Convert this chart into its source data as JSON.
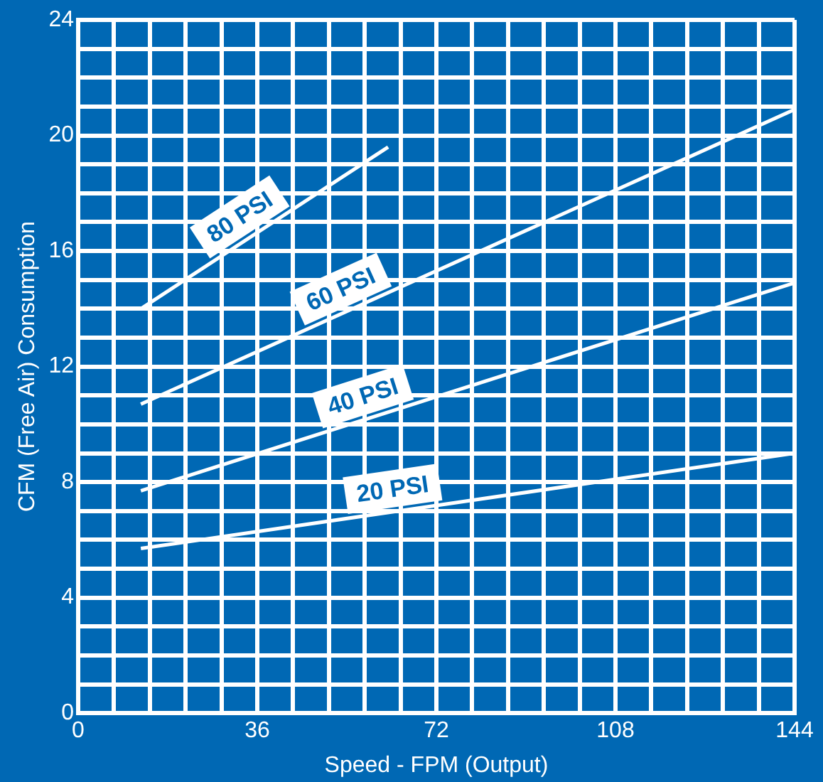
{
  "chart_data": {
    "type": "line",
    "xlabel": "Speed - FPM (Output)",
    "ylabel": "CFM (Free Air) Consumption",
    "xlim": [
      0,
      144
    ],
    "xticks": [
      0,
      {
        "value": 7.2,
        "label": null
      },
      {
        "value": 14.4,
        "label": null
      },
      {
        "value": 21.6,
        "label": null
      },
      {
        "value": 28.8,
        "label": null
      },
      36,
      {
        "value": 43.2,
        "label": null
      },
      {
        "value": 50.4,
        "label": null
      },
      {
        "value": 57.6,
        "label": null
      },
      {
        "value": 64.8,
        "label": null
      },
      72,
      {
        "value": 79.2,
        "label": null
      },
      {
        "value": 86.4,
        "label": null
      },
      {
        "value": 93.6,
        "label": null
      },
      {
        "value": 100.8,
        "label": null
      },
      108,
      {
        "value": 115.2,
        "label": null
      },
      {
        "value": 122.4,
        "label": null
      },
      {
        "value": 129.6,
        "label": null
      },
      {
        "value": 136.8,
        "label": null
      },
      144
    ],
    "ylim": [
      0,
      24
    ],
    "yticks": [
      0,
      {
        "value": 1,
        "label": null
      },
      {
        "value": 2,
        "label": null
      },
      {
        "value": 3,
        "label": null
      },
      4,
      {
        "value": 5,
        "label": null
      },
      {
        "value": 6,
        "label": null
      },
      {
        "value": 7,
        "label": null
      },
      8,
      {
        "value": 9,
        "label": null
      },
      {
        "value": 10,
        "label": null
      },
      {
        "value": 11,
        "label": null
      },
      12,
      {
        "value": 13,
        "label": null
      },
      {
        "value": 14,
        "label": null
      },
      {
        "value": 15,
        "label": null
      },
      16,
      {
        "value": 17,
        "label": null
      },
      {
        "value": 18,
        "label": null
      },
      {
        "value": 19,
        "label": null
      },
      20,
      {
        "value": 21,
        "label": null
      },
      {
        "value": 22,
        "label": null
      },
      {
        "value": 23,
        "label": null
      },
      24
    ],
    "grid": true,
    "legend": false,
    "marker": "none",
    "line_style": "solid",
    "series": [
      {
        "name": "20 PSI",
        "color": "#ffffff",
        "x": [
          12.6,
          144
        ],
        "values": [
          5.7,
          9.0
        ]
      },
      {
        "name": "40 PSI",
        "color": "#ffffff",
        "x": [
          12.6,
          144
        ],
        "values": [
          7.7,
          14.9
        ]
      },
      {
        "name": "60 PSI",
        "color": "#ffffff",
        "x": [
          12.6,
          144
        ],
        "values": [
          10.7,
          20.9
        ]
      },
      {
        "name": "80 PSI",
        "color": "#ffffff",
        "x": [
          12.6,
          62.3
        ],
        "values": [
          14.0,
          19.6
        ]
      }
    ]
  }
}
